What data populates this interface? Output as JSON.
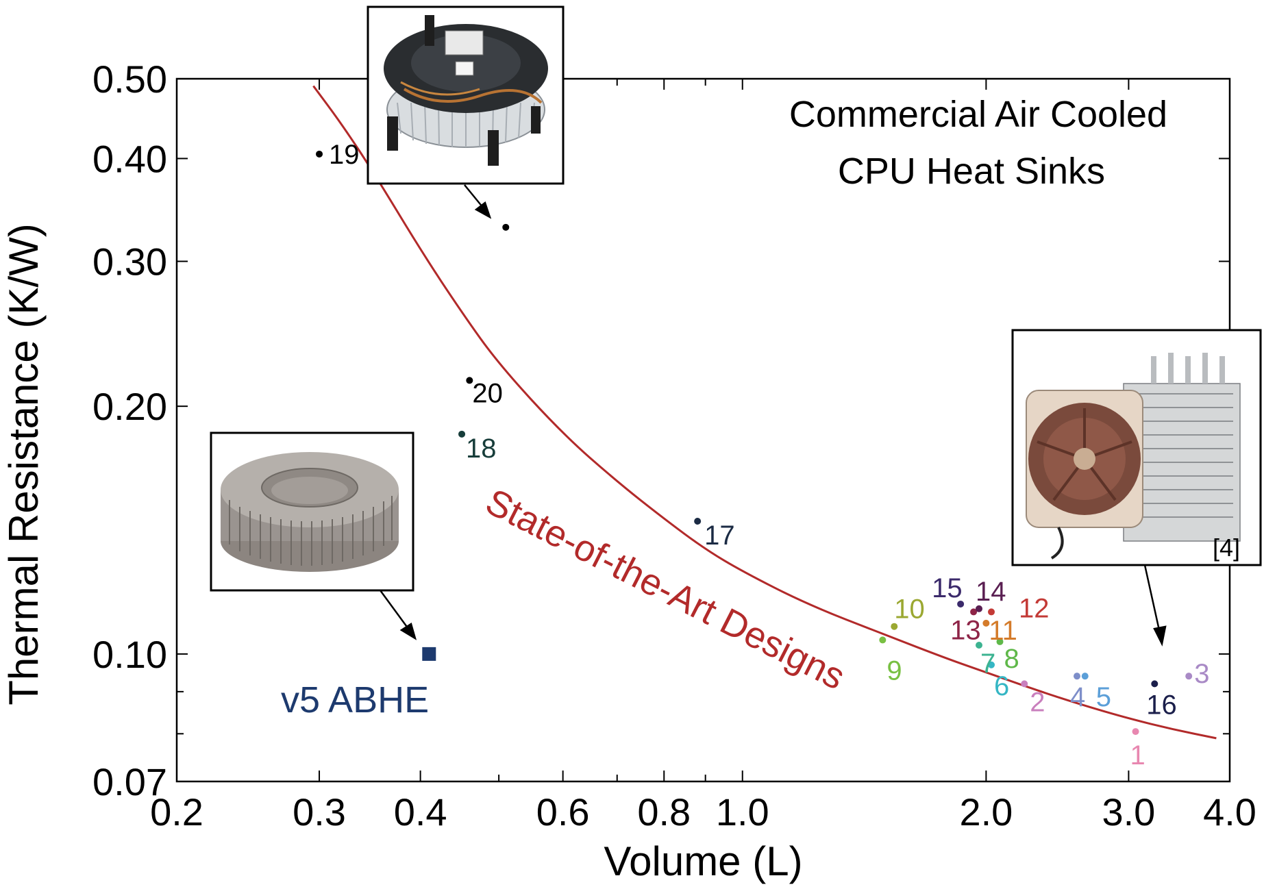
{
  "chart_data": {
    "type": "scatter",
    "title": "",
    "xlabel": "Volume (L)",
    "ylabel": "Thermal Resistance (K/W)",
    "x_scale": "log",
    "y_scale": "log",
    "xlim": [
      0.2,
      4.0
    ],
    "ylim": [
      0.07,
      0.5
    ],
    "x_ticks": [
      {
        "v": 0.2,
        "label": "0.2"
      },
      {
        "v": 0.3,
        "label": "0.3"
      },
      {
        "v": 0.4,
        "label": "0.4"
      },
      {
        "v": 0.6,
        "label": "0.6"
      },
      {
        "v": 0.8,
        "label": "0.8"
      },
      {
        "v": 1.0,
        "label": "1.0"
      },
      {
        "v": 2.0,
        "label": "2.0"
      },
      {
        "v": 3.0,
        "label": "3.0"
      },
      {
        "v": 4.0,
        "label": "4.0"
      }
    ],
    "x_minor_ticks": [
      0.5,
      0.7,
      0.9
    ],
    "y_ticks": [
      {
        "v": 0.5,
        "label": "0.50"
      },
      {
        "v": 0.4,
        "label": "0.40"
      },
      {
        "v": 0.3,
        "label": "0.30"
      },
      {
        "v": 0.2,
        "label": "0.20"
      },
      {
        "v": 0.1,
        "label": "0.10"
      },
      {
        "v": 0.07,
        "label": "0.07"
      }
    ],
    "y_minor_ticks": [
      0.09,
      0.08
    ],
    "grid": false,
    "legend": "none",
    "points": [
      {
        "label": "1",
        "x": 3.06,
        "y": 0.0805,
        "color": "#e887b0"
      },
      {
        "label": "2",
        "x": 2.23,
        "y": 0.092,
        "color": "#c97fbd"
      },
      {
        "label": "3",
        "x": 3.56,
        "y": 0.094,
        "color": "#a98ac6"
      },
      {
        "label": "4",
        "x": 2.59,
        "y": 0.094,
        "color": "#7d8ec9"
      },
      {
        "label": "5",
        "x": 2.65,
        "y": 0.094,
        "color": "#5b9fd8"
      },
      {
        "label": "6",
        "x": 2.03,
        "y": 0.097,
        "color": "#35b6c4"
      },
      {
        "label": "7",
        "x": 1.96,
        "y": 0.1025,
        "color": "#3cb391"
      },
      {
        "label": "8",
        "x": 2.08,
        "y": 0.1035,
        "color": "#5fb849"
      },
      {
        "label": "9",
        "x": 1.49,
        "y": 0.104,
        "color": "#79c043"
      },
      {
        "label": "10",
        "x": 1.54,
        "y": 0.108,
        "color": "#9ba832"
      },
      {
        "label": "11",
        "x": 2.0,
        "y": 0.109,
        "color": "#d47b2a"
      },
      {
        "label": "12",
        "x": 2.03,
        "y": 0.1125,
        "color": "#c33a36"
      },
      {
        "label": "13",
        "x": 1.93,
        "y": 0.1125,
        "color": "#8e2447"
      },
      {
        "label": "14",
        "x": 1.96,
        "y": 0.1135,
        "color": "#5a1f52"
      },
      {
        "label": "15",
        "x": 1.86,
        "y": 0.115,
        "color": "#3b2a6b"
      },
      {
        "label": "16",
        "x": 3.23,
        "y": 0.092,
        "color": "#1b1f4b"
      },
      {
        "label": "17",
        "x": 0.88,
        "y": 0.145,
        "color": "#1b2b44"
      },
      {
        "label": "18",
        "x": 0.45,
        "y": 0.185,
        "color": "#173d3a"
      },
      {
        "label": "19",
        "x": 0.3,
        "y": 0.405,
        "color": "#000000"
      },
      {
        "label": "20",
        "x": 0.46,
        "y": 0.215,
        "color": "#000000"
      },
      {
        "label": "",
        "x": 0.51,
        "y": 0.33,
        "color": "#000000"
      }
    ],
    "highlight": {
      "label": "v5 ABHE",
      "x": 0.41,
      "y": 0.1,
      "color": "#1d3a6e"
    },
    "fit_curve": {
      "name": "State-of-the-Art Designs",
      "color": "#b22a2a",
      "x": [
        0.295,
        0.32,
        0.35,
        0.4,
        0.45,
        0.5,
        0.6,
        0.7,
        0.8,
        0.9,
        1.0,
        1.2,
        1.5,
        1.8,
        2.0,
        2.3,
        2.6,
        3.0,
        3.4,
        3.85
      ],
      "y": [
        0.49,
        0.44,
        0.385,
        0.31,
        0.26,
        0.225,
        0.185,
        0.162,
        0.146,
        0.134,
        0.126,
        0.115,
        0.1055,
        0.0985,
        0.095,
        0.0905,
        0.087,
        0.0835,
        0.081,
        0.079
      ]
    },
    "annotations": {
      "title_line1": "Commercial Air Cooled",
      "title_line2": "CPU Heat Sinks",
      "ref_label": "[4]"
    }
  }
}
